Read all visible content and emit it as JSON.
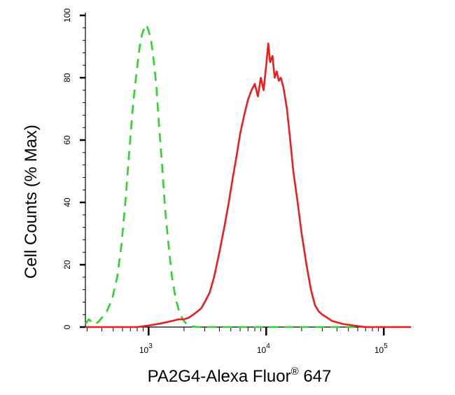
{
  "chart_data": {
    "type": "line",
    "title": "",
    "xlabel": "PA2G4-Alexa Fluor",
    "xlabel_sup": "®",
    "xlabel_suffix": " 647",
    "ylabel": "Cell Counts (% Max)",
    "xscale": "log",
    "xlim": [
      290,
      170000
    ],
    "ylim": [
      0,
      100
    ],
    "yticks": [
      0,
      20,
      40,
      60,
      80,
      100
    ],
    "xticks": [
      {
        "base": "10",
        "exp": "3",
        "value": 1000
      },
      {
        "base": "10",
        "exp": "4",
        "value": 10000
      },
      {
        "base": "10",
        "exp": "5",
        "value": 100000
      }
    ],
    "grid": false,
    "legend": "none",
    "series": [
      {
        "color": "#2dd42d",
        "dash": "dashed",
        "x": [
          290,
          310,
          340,
          370,
          400,
          440,
          490,
          540,
          590,
          640,
          690,
          740,
          790,
          840,
          880,
          920,
          960,
          1000,
          1050,
          1100,
          1160,
          1220,
          1300,
          1380,
          1480,
          1580,
          1700,
          1820,
          1950,
          2100,
          2300,
          2600,
          3000,
          5000,
          10000,
          30000,
          170000
        ],
        "y": [
          1,
          2.5,
          1,
          1.5,
          3,
          5,
          9,
          16,
          27,
          42,
          58,
          72,
          82,
          90,
          94,
          96,
          97,
          95,
          92,
          86,
          78,
          66,
          52,
          38,
          26,
          16,
          9,
          5,
          2.5,
          1,
          0.3,
          0,
          0,
          0,
          0,
          0,
          0
        ]
      },
      {
        "color": "#ee1c1c",
        "dash": "solid",
        "x": [
          290,
          600,
          800,
          1000,
          1200,
          1400,
          1600,
          1800,
          2000,
          2200,
          2400,
          2600,
          2800,
          3000,
          3300,
          3600,
          4000,
          4400,
          4800,
          5200,
          5600,
          6000,
          6500,
          7000,
          7500,
          8000,
          8500,
          9000,
          9500,
          10000,
          10400,
          10800,
          11300,
          11800,
          12300,
          12800,
          13300,
          14000,
          15000,
          16000,
          17000,
          18500,
          20000,
          22000,
          24000,
          26000,
          28000,
          30000,
          33000,
          36000,
          40000,
          45000,
          55000,
          70000,
          100000,
          170000
        ],
        "y": [
          0,
          0,
          0,
          0.5,
          1,
          1.5,
          2,
          2.5,
          2.5,
          3,
          4,
          5,
          6,
          8,
          11,
          16,
          24,
          32,
          40,
          48,
          55,
          62,
          68,
          73,
          76,
          78,
          74,
          80,
          76,
          84,
          91,
          85,
          87,
          80,
          82,
          79,
          80,
          77,
          70,
          60,
          50,
          40,
          30,
          20,
          12,
          7,
          5,
          4,
          3,
          2,
          1.5,
          1,
          0.5,
          0,
          0,
          0
        ]
      }
    ]
  }
}
